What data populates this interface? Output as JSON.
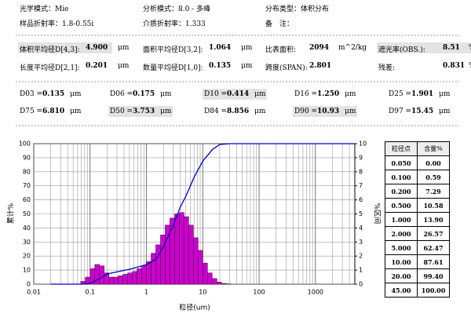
{
  "header": {
    "rows": [
      [
        "光学模式：Mie",
        "分析模式：8.0 - 多峰",
        "分布类型：体积分布"
      ],
      [
        "样品折射率：1.8-0.55i",
        "介质折射率：1.333",
        "备　注："
      ]
    ]
  },
  "stats": {
    "rows": [
      [
        {
          "label": "体积平均径D[4,3]:",
          "value": "4.900",
          "unit": "μm",
          "highlight": true
        },
        {
          "label": "面积平均径D[3,2]:",
          "value": "1.064",
          "unit": "μm"
        },
        {
          "label": "比表面积:",
          "value": "2094",
          "unit": "m^2/kg"
        },
        {
          "label": "遮光率(OBS.):",
          "value": "8.51",
          "unit": "%",
          "highlight": true
        }
      ],
      [
        {
          "label": "长度平均径D[2,1]:",
          "value": "0.201",
          "unit": "μm"
        },
        {
          "label": "数量平均径D[1,0]:",
          "value": "0.135",
          "unit": "μm"
        },
        {
          "label": "跨度(SPAN):",
          "value": "2.801"
        },
        {
          "label": "残差:",
          "value": "0.831",
          "unit": "%"
        }
      ]
    ]
  },
  "percentiles": {
    "rows": [
      [
        {
          "label": "D03 =",
          "value": "0.135",
          "unit": "μm"
        },
        {
          "label": "D06 =",
          "value": "0.175",
          "unit": "μm"
        },
        {
          "label": "D10 =",
          "value": "0.414",
          "unit": "μm",
          "highlight": true
        },
        {
          "label": "D16 =",
          "value": "1.250",
          "unit": "μm"
        },
        {
          "label": "D25 =",
          "value": "1.901",
          "unit": "μm"
        }
      ],
      [
        {
          "label": "D75 =",
          "value": "6.810",
          "unit": "μm"
        },
        {
          "label": "D50 =",
          "value": "3.753",
          "unit": "μm",
          "highlight": true
        },
        {
          "label": "D84 =",
          "value": "8.856",
          "unit": "μm"
        },
        {
          "label": "D90 =",
          "value": "10.93",
          "unit": "μm",
          "highlight": true
        },
        {
          "label": "D97 =",
          "value": "15.45",
          "unit": "μm"
        }
      ]
    ]
  },
  "table": {
    "columns": [
      "粒径点",
      "含量%"
    ],
    "rows": [
      [
        "0.050",
        "0.00"
      ],
      [
        "0.100",
        "0.59"
      ],
      [
        "0.200",
        "7.29"
      ],
      [
        "0.500",
        "10.58"
      ],
      [
        "1.000",
        "13.90"
      ],
      [
        "2.000",
        "26.57"
      ],
      [
        "5.000",
        "62.47"
      ],
      [
        "10.00",
        "87.61"
      ],
      [
        "20.00",
        "99.40"
      ],
      [
        "45.00",
        "100.00"
      ]
    ]
  },
  "chart_data": {
    "type": "histogram",
    "x_label": "粒径(um)",
    "y_label": "累计%",
    "y2_label": "%区间",
    "log_x": true,
    "xlim": [
      0.01,
      5000
    ],
    "xticks": [
      0.01,
      0.1,
      1,
      10,
      100,
      1000
    ],
    "ylim": [
      0,
      100
    ],
    "yticks": [
      0,
      10,
      20,
      30,
      40,
      50,
      60,
      70,
      80,
      90,
      100
    ],
    "y2lim": [
      0,
      10
    ],
    "y2ticks": [
      0,
      1,
      2,
      3,
      4,
      5,
      6,
      7,
      8,
      9,
      10
    ],
    "grid": true,
    "color": "#cc00cc",
    "bins": [
      0.0681,
      0.0825,
      0.1,
      0.1212,
      0.1468,
      0.1778,
      0.2154,
      0.261,
      0.3162,
      0.3831,
      0.4642,
      0.5623,
      0.6813,
      0.8254,
      1,
      1.212,
      1.468,
      1.778,
      2.154,
      2.61,
      3.162,
      3.831,
      4.642,
      5.623,
      6.813,
      8.254,
      10,
      12.12,
      14.68,
      17.78,
      21.54,
      26.1,
      31.62
    ],
    "counts": [
      0.2,
      0.5,
      1.1,
      1.4,
      1.3,
      0.8,
      0.5,
      0.5,
      0.6,
      0.7,
      0.8,
      0.9,
      1.1,
      1.3,
      1.6,
      2.2,
      2.8,
      3.5,
      4.2,
      4.7,
      5.0,
      5.1,
      4.8,
      4.2,
      3.3,
      2.4,
      1.5,
      0.8,
      0.4,
      0.15,
      0.05,
      0.02
    ],
    "counts_axis": "y2",
    "cumulative": {
      "color": "#0000cc",
      "x": [
        0.02,
        0.07,
        0.1,
        0.15,
        0.2,
        0.5,
        1,
        1.5,
        2,
        3,
        4,
        5,
        7,
        10,
        15,
        20,
        30,
        45,
        5000
      ],
      "values": [
        0,
        0,
        0.6,
        4,
        7.3,
        10.6,
        13.9,
        18,
        26.6,
        42,
        55,
        62.5,
        76,
        87.6,
        96,
        99.4,
        100,
        100,
        100
      ]
    }
  }
}
